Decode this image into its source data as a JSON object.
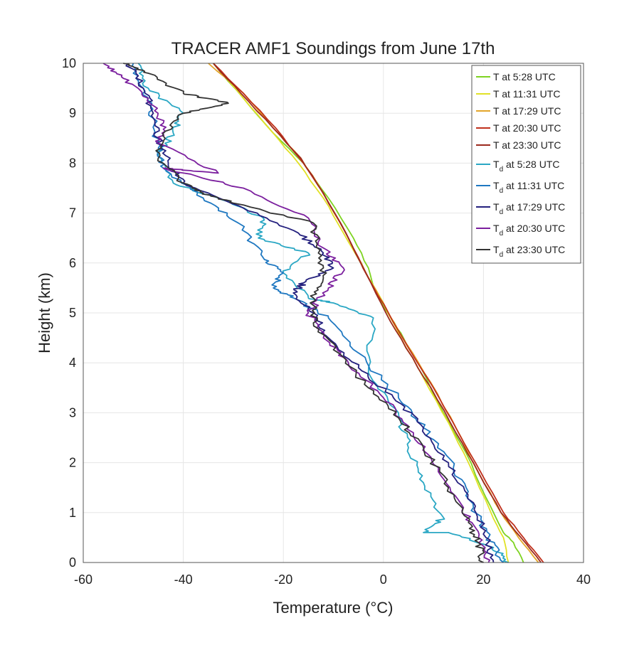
{
  "chart_data": {
    "type": "line",
    "title": "TRACER AMF1 Soundings from June 17th",
    "xlabel": "Temperature (°C)",
    "ylabel": "Height (km)",
    "xlim": [
      -60,
      40
    ],
    "ylim": [
      0,
      10
    ],
    "xticks": [
      "-60",
      "-40",
      "-20",
      "0",
      "20",
      "40"
    ],
    "yticks": [
      "0",
      "1",
      "2",
      "3",
      "4",
      "5",
      "6",
      "7",
      "8",
      "9",
      "10"
    ],
    "grid": true,
    "legend_position": "top-right",
    "series": [
      {
        "name": "T at 5:28 UTC",
        "prefix": "T",
        "sub": "",
        "time": " at 5:28 UTC",
        "color": "#7ed321",
        "points": [
          [
            28,
            0
          ],
          [
            26,
            0.4
          ],
          [
            24,
            0.6
          ],
          [
            20.5,
            1.3
          ],
          [
            16.5,
            2.2
          ],
          [
            12,
            3
          ],
          [
            7.5,
            3.9
          ],
          [
            4,
            4.5
          ],
          [
            1.5,
            4.9
          ],
          [
            -1,
            5.3
          ],
          [
            -1.5,
            5.4
          ],
          [
            -3,
            5.9
          ],
          [
            -6,
            6.5
          ],
          [
            -11,
            7.3
          ],
          [
            -16,
            8
          ],
          [
            -22,
            8.6
          ],
          [
            -28,
            9.3
          ],
          [
            -34,
            10
          ]
        ]
      },
      {
        "name": "T at 11:31 UTC",
        "prefix": "T",
        "sub": "",
        "time": " at 11:31 UTC",
        "color": "#e1e126",
        "points": [
          [
            25,
            0
          ],
          [
            24,
            0.5
          ],
          [
            21.5,
            1
          ],
          [
            17,
            2
          ],
          [
            13,
            2.8
          ],
          [
            8,
            3.7
          ],
          [
            3.5,
            4.5
          ],
          [
            0,
            5.2
          ],
          [
            -4,
            5.9
          ],
          [
            -8,
            6.6
          ],
          [
            -12,
            7.3
          ],
          [
            -17,
            8
          ],
          [
            -22,
            8.6
          ],
          [
            -28,
            9.3
          ],
          [
            -34,
            10
          ]
        ]
      },
      {
        "name": "T at 17:29 UTC",
        "prefix": "T",
        "sub": "",
        "time": " at 17:29 UTC",
        "color": "#e3a52a",
        "points": [
          [
            31,
            0
          ],
          [
            27,
            0.5
          ],
          [
            23.5,
            1
          ],
          [
            19,
            1.8
          ],
          [
            14.5,
            2.7
          ],
          [
            9.5,
            3.6
          ],
          [
            4.5,
            4.4
          ],
          [
            0.5,
            5.1
          ],
          [
            -3.5,
            5.8
          ],
          [
            -7.5,
            6.6
          ],
          [
            -12,
            7.4
          ],
          [
            -16.5,
            8.1
          ],
          [
            -22,
            8.7
          ],
          [
            -28,
            9.4
          ],
          [
            -35,
            10
          ]
        ]
      },
      {
        "name": "T at 20:30 UTC",
        "prefix": "T",
        "sub": "",
        "time": " at 20:30 UTC",
        "color": "#c0301c",
        "points": [
          [
            32,
            0
          ],
          [
            28,
            0.5
          ],
          [
            24,
            1
          ],
          [
            19.5,
            1.8
          ],
          [
            15,
            2.6
          ],
          [
            10,
            3.5
          ],
          [
            5,
            4.3
          ],
          [
            1,
            5
          ],
          [
            -3,
            5.7
          ],
          [
            -7,
            6.5
          ],
          [
            -11.5,
            7.3
          ],
          [
            -16,
            8
          ],
          [
            -21.5,
            8.7
          ],
          [
            -28,
            9.4
          ],
          [
            -34,
            10
          ]
        ]
      },
      {
        "name": "T at 23:30 UTC",
        "prefix": "T",
        "sub": "",
        "time": " at 23:30 UTC",
        "color": "#9c2a1e",
        "points": [
          [
            31.5,
            0
          ],
          [
            27.5,
            0.5
          ],
          [
            23.5,
            1
          ],
          [
            19,
            1.8
          ],
          [
            14.5,
            2.6
          ],
          [
            9.5,
            3.5
          ],
          [
            4.5,
            4.3
          ],
          [
            0.5,
            5
          ],
          [
            -3.5,
            5.8
          ],
          [
            -7.5,
            6.6
          ],
          [
            -12,
            7.4
          ],
          [
            -16.5,
            8.1
          ],
          [
            -22,
            8.7
          ],
          [
            -28.5,
            9.4
          ],
          [
            -34,
            10
          ]
        ]
      },
      {
        "name": "Td at 5:28 UTC",
        "prefix": "T",
        "sub": "d",
        "time": " at 5:28 UTC",
        "color": "#2aa7c4",
        "points": [
          [
            25,
            0
          ],
          [
            22,
            0.3
          ],
          [
            13,
            0.6
          ],
          [
            8,
            0.6
          ],
          [
            12,
            0.9
          ],
          [
            8,
            1.6
          ],
          [
            5,
            2.3
          ],
          [
            3,
            3
          ],
          [
            -3,
            3.8
          ],
          [
            -2,
            4.9
          ],
          [
            -10,
            5.2
          ],
          [
            -15,
            5.3
          ],
          [
            -20,
            5.8
          ],
          [
            -15,
            6.2
          ],
          [
            -25,
            6.5
          ],
          [
            -24,
            6.9
          ],
          [
            -33,
            7.3
          ],
          [
            -42,
            7.6
          ],
          [
            -45,
            8.2
          ],
          [
            -42,
            8.6
          ],
          [
            -40,
            9.0
          ],
          [
            -47,
            9.5
          ],
          [
            -49,
            10
          ]
        ]
      },
      {
        "name": "Td at 11:31 UTC",
        "prefix": "T",
        "sub": "d",
        "time": " at 11:31 UTC",
        "color": "#1f78c1",
        "points": [
          [
            24,
            0
          ],
          [
            21,
            0.5
          ],
          [
            18,
            1.1
          ],
          [
            14,
            1.9
          ],
          [
            8,
            2.7
          ],
          [
            3,
            3.3
          ],
          [
            -5,
            4.2
          ],
          [
            -11,
            4.9
          ],
          [
            -18,
            5.3
          ],
          [
            -22,
            5.5
          ],
          [
            -20,
            5.8
          ],
          [
            -24,
            6.1
          ],
          [
            -29,
            6.8
          ],
          [
            -36,
            7.3
          ],
          [
            -44,
            7.9
          ],
          [
            -45,
            8.3
          ],
          [
            -46,
            8.9
          ],
          [
            -48,
            9.5
          ],
          [
            -50,
            10
          ]
        ]
      },
      {
        "name": "Td at 17:29 UTC",
        "prefix": "T",
        "sub": "d",
        "time": " at 17:29 UTC",
        "color": "#24207e",
        "points": [
          [
            22,
            0
          ],
          [
            20.5,
            0.5
          ],
          [
            18,
            1.2
          ],
          [
            13,
            2
          ],
          [
            8,
            2.7
          ],
          [
            2,
            3.3
          ],
          [
            -5,
            3.9
          ],
          [
            -11,
            4.5
          ],
          [
            -14,
            5
          ],
          [
            -18,
            5.4
          ],
          [
            -16,
            5.6
          ],
          [
            -10,
            5.9
          ],
          [
            -12,
            6.2
          ],
          [
            -17,
            6.6
          ],
          [
            -28,
            7.1
          ],
          [
            -40,
            7.6
          ],
          [
            -43,
            8
          ],
          [
            -45,
            8.5
          ],
          [
            -46,
            9
          ],
          [
            -48,
            9.5
          ],
          [
            -51,
            10
          ]
        ]
      },
      {
        "name": "Td at 20:30 UTC",
        "prefix": "T",
        "sub": "d",
        "time": " at 20:30 UTC",
        "color": "#7b1f9e",
        "points": [
          [
            21,
            0
          ],
          [
            19,
            0.5
          ],
          [
            16,
            1.1
          ],
          [
            11,
            1.9
          ],
          [
            6,
            2.6
          ],
          [
            0,
            3.3
          ],
          [
            -7,
            4
          ],
          [
            -12,
            4.5
          ],
          [
            -15,
            5
          ],
          [
            -11,
            5.5
          ],
          [
            -8,
            5.9
          ],
          [
            -12,
            6.3
          ],
          [
            -15,
            6.9
          ],
          [
            -28,
            7.5
          ],
          [
            -44,
            7.9
          ],
          [
            -33,
            7.8
          ],
          [
            -45,
            8.4
          ],
          [
            -44,
            8.8
          ],
          [
            -47,
            9.3
          ],
          [
            -52,
            9.7
          ],
          [
            -56,
            10
          ]
        ]
      },
      {
        "name": "Td at 23:30 UTC",
        "prefix": "T",
        "sub": "d",
        "time": " at 23:30 UTC",
        "color": "#333333",
        "points": [
          [
            20,
            0
          ],
          [
            19,
            0.4
          ],
          [
            17,
            0.8
          ],
          [
            13,
            1.5
          ],
          [
            8,
            2.3
          ],
          [
            3,
            2.9
          ],
          [
            -3,
            3.5
          ],
          [
            -9,
            4.2
          ],
          [
            -14,
            4.8
          ],
          [
            -14,
            5.3
          ],
          [
            -12,
            5.7
          ],
          [
            -13,
            6.2
          ],
          [
            -14,
            6.8
          ],
          [
            -30,
            7.2
          ],
          [
            -36,
            7.4
          ],
          [
            -40,
            7.6
          ],
          [
            -45,
            8.1
          ],
          [
            -44,
            8.6
          ],
          [
            -40,
            9.0
          ],
          [
            -31,
            9.2
          ],
          [
            -40,
            9.4
          ],
          [
            -47,
            9.8
          ],
          [
            -52,
            10
          ]
        ]
      }
    ]
  }
}
